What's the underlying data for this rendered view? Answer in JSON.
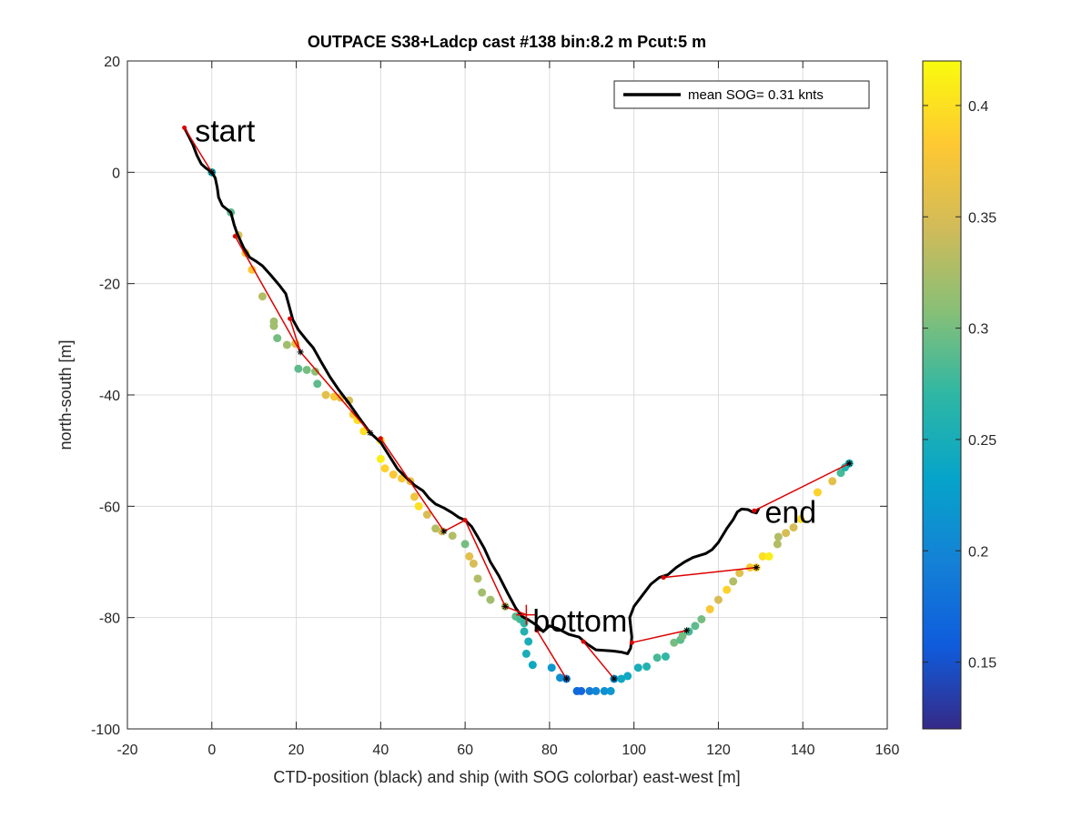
{
  "chart_data": {
    "type": "scatter",
    "title": "OUTPACE S38+Ladcp cast #138 bin:8.2 m  Pcut:5 m",
    "xlabel": "CTD-position (black) and ship (with SOG colorbar) east-west [m]",
    "ylabel": "north-south [m]",
    "xlim": [
      -20,
      160
    ],
    "ylim": [
      -100,
      20
    ],
    "xticks": [
      -20,
      0,
      20,
      40,
      60,
      80,
      100,
      120,
      140,
      160
    ],
    "yticks": [
      -100,
      -80,
      -60,
      -40,
      -20,
      0,
      20
    ],
    "grid": true,
    "legend": {
      "position": "top-right",
      "label": "mean SOG=  0.31 knts"
    },
    "annotations": [
      {
        "text": "start",
        "x": -4,
        "y": 5.5
      },
      {
        "text": "bottom",
        "x": 76,
        "y": -82.5
      },
      {
        "text": "end",
        "x": 131,
        "y": -63
      }
    ],
    "colorbar": {
      "min": 0.12,
      "max": 0.42,
      "ticks": [
        "0.15",
        "0.2",
        "0.25",
        "0.3",
        "0.35",
        "0.4"
      ]
    },
    "colors": {
      "ctd_track": "#000000",
      "connector": "#dd0000",
      "grid": "#dcdcdc"
    },
    "ctd_track": [
      [
        -6.5,
        8
      ],
      [
        -5.5,
        6.5
      ],
      [
        -4.5,
        5
      ],
      [
        -3.5,
        3
      ],
      [
        -2.5,
        1.5
      ],
      [
        -1.5,
        0.8
      ],
      [
        0,
        0
      ],
      [
        0.8,
        -1
      ],
      [
        1.3,
        -2.8
      ],
      [
        1.6,
        -4.5
      ],
      [
        2.5,
        -6
      ],
      [
        4.5,
        -7.2
      ],
      [
        5.3,
        -9.5
      ],
      [
        6,
        -11
      ],
      [
        7.5,
        -13.5
      ],
      [
        9,
        -15.3
      ],
      [
        10.5,
        -16
      ],
      [
        12,
        -16.8
      ],
      [
        14,
        -18.5
      ],
      [
        16,
        -20.3
      ],
      [
        17.5,
        -21.8
      ],
      [
        18.3,
        -24
      ],
      [
        19.2,
        -26.5
      ],
      [
        20.5,
        -28.3
      ],
      [
        22.5,
        -30.2
      ],
      [
        24,
        -31.5
      ],
      [
        26,
        -34.2
      ],
      [
        28,
        -36.8
      ],
      [
        30,
        -39
      ],
      [
        32.5,
        -41.5
      ],
      [
        35,
        -44.2
      ],
      [
        37.5,
        -46.8
      ],
      [
        40,
        -48.5
      ],
      [
        42.5,
        -51.5
      ],
      [
        44,
        -53.3
      ],
      [
        46,
        -54.8
      ],
      [
        48,
        -56.2
      ],
      [
        50,
        -57.2
      ],
      [
        51.5,
        -58.6
      ],
      [
        53,
        -59.6
      ],
      [
        55,
        -60.3
      ],
      [
        57,
        -61.2
      ],
      [
        58.5,
        -62
      ],
      [
        60,
        -62.5
      ],
      [
        61.5,
        -63.6
      ],
      [
        63,
        -65.5
      ],
      [
        64.5,
        -67.5
      ],
      [
        66,
        -70
      ],
      [
        68,
        -72.5
      ],
      [
        70,
        -75.5
      ],
      [
        72,
        -78.3
      ],
      [
        73.5,
        -79.8
      ],
      [
        75,
        -80.4
      ],
      [
        77,
        -81.4
      ],
      [
        78.5,
        -82.5
      ],
      [
        80,
        -81.5
      ],
      [
        82,
        -82
      ],
      [
        84.5,
        -83
      ],
      [
        87,
        -83.5
      ],
      [
        89,
        -84.8
      ],
      [
        91,
        -85.8
      ],
      [
        93,
        -85.9
      ],
      [
        95,
        -86
      ],
      [
        97,
        -86.2
      ],
      [
        98.5,
        -86.5
      ],
      [
        99.2,
        -85.5
      ],
      [
        99.5,
        -83.5
      ],
      [
        99,
        -80
      ],
      [
        100,
        -78
      ],
      [
        102,
        -76
      ],
      [
        104,
        -74
      ],
      [
        106,
        -72.8
      ],
      [
        108,
        -72.3
      ],
      [
        110,
        -71
      ],
      [
        112,
        -70
      ],
      [
        114,
        -69.2
      ],
      [
        117,
        -68.5
      ],
      [
        118.5,
        -67.8
      ],
      [
        120,
        -66.5
      ],
      [
        122,
        -64
      ],
      [
        123.5,
        -62.4
      ],
      [
        124.5,
        -61
      ],
      [
        125.5,
        -60.5
      ],
      [
        127,
        -60.6
      ],
      [
        128,
        -61
      ],
      [
        129,
        -61.2
      ],
      [
        129.5,
        -60.5
      ]
    ],
    "ship_positions": [
      [
        0,
        0,
        0.25
      ],
      [
        4.5,
        -7.2,
        0.29
      ],
      [
        6.3,
        -11.3,
        0.35
      ],
      [
        8,
        -14.5,
        0.37
      ],
      [
        9.5,
        -17.5,
        0.38
      ],
      [
        12,
        -22.3,
        0.33
      ],
      [
        14.7,
        -26.8,
        0.32
      ],
      [
        14.7,
        -27.6,
        0.32
      ],
      [
        15.5,
        -29.8,
        0.3
      ],
      [
        17.8,
        -31,
        0.32
      ],
      [
        19.8,
        -30.8,
        0.36
      ],
      [
        20.5,
        -35.3,
        0.29
      ],
      [
        22.5,
        -35.5,
        0.3
      ],
      [
        24.5,
        -35.8,
        0.31
      ],
      [
        25,
        -38,
        0.29
      ],
      [
        27,
        -40,
        0.36
      ],
      [
        29,
        -40.3,
        0.38
      ],
      [
        30.5,
        -40.5,
        0.36
      ],
      [
        32.5,
        -41,
        0.35
      ],
      [
        33.5,
        -43.5,
        0.38
      ],
      [
        34.5,
        -44.5,
        0.4
      ],
      [
        36,
        -46.5,
        0.4
      ],
      [
        40,
        -48.2,
        0.4
      ],
      [
        40,
        -51.5,
        0.41
      ],
      [
        41,
        -53.2,
        0.39
      ],
      [
        43,
        -54.3,
        0.38
      ],
      [
        45,
        -55,
        0.38
      ],
      [
        47,
        -55.5,
        0.36
      ],
      [
        48,
        -58.3,
        0.37
      ],
      [
        49,
        -60,
        0.4
      ],
      [
        51,
        -61.5,
        0.35
      ],
      [
        53,
        -64,
        0.33
      ],
      [
        54.5,
        -64.5,
        0.35
      ],
      [
        57,
        -65.3,
        0.33
      ],
      [
        60,
        -66.8,
        0.3
      ],
      [
        61,
        -69,
        0.36
      ],
      [
        62,
        -70.3,
        0.35
      ],
      [
        63,
        -73,
        0.33
      ],
      [
        64,
        -75.5,
        0.32
      ],
      [
        66,
        -76.8,
        0.32
      ],
      [
        69.5,
        -78,
        0.33
      ],
      [
        72,
        -79.8,
        0.29
      ],
      [
        73,
        -80.3,
        0.28
      ],
      [
        74,
        -81,
        0.27
      ],
      [
        74,
        -82.5,
        0.26
      ],
      [
        75,
        -84.3,
        0.25
      ],
      [
        74.5,
        -86.5,
        0.25
      ],
      [
        76,
        -88.5,
        0.24
      ],
      [
        80.5,
        -89,
        0.22
      ],
      [
        82.5,
        -90.8,
        0.21
      ],
      [
        84,
        -91,
        0.19
      ],
      [
        86.5,
        -93.2,
        0.17
      ],
      [
        87.5,
        -93.2,
        0.17
      ],
      [
        89.5,
        -93.2,
        0.19
      ],
      [
        91,
        -93.2,
        0.2
      ],
      [
        93,
        -93.2,
        0.21
      ],
      [
        94.5,
        -93.2,
        0.22
      ],
      [
        95.3,
        -91,
        0.21
      ],
      [
        97,
        -91,
        0.24
      ],
      [
        98.5,
        -90.5,
        0.24
      ],
      [
        101,
        -89,
        0.25
      ],
      [
        103,
        -88.8,
        0.26
      ],
      [
        105.5,
        -87.2,
        0.28
      ],
      [
        107.5,
        -87,
        0.27
      ],
      [
        109.5,
        -84.5,
        0.3
      ],
      [
        111,
        -84,
        0.29
      ],
      [
        111.5,
        -83.3,
        0.3
      ],
      [
        113,
        -82.5,
        0.28
      ],
      [
        114.5,
        -81.5,
        0.29
      ],
      [
        116,
        -80.3,
        0.3
      ],
      [
        118,
        -78.5,
        0.38
      ],
      [
        120,
        -76.8,
        0.35
      ],
      [
        122,
        -75,
        0.39
      ],
      [
        123.5,
        -73.5,
        0.33
      ],
      [
        125,
        -72,
        0.36
      ],
      [
        127.5,
        -71,
        0.38
      ],
      [
        129,
        -71,
        0.39
      ],
      [
        130.5,
        -69,
        0.4
      ],
      [
        132,
        -69,
        0.41
      ],
      [
        134,
        -66.8,
        0.33
      ],
      [
        134.2,
        -65.5,
        0.33
      ],
      [
        136,
        -64.8,
        0.35
      ],
      [
        137.8,
        -63.8,
        0.35
      ],
      [
        139.5,
        -62.3,
        0.4
      ],
      [
        143.5,
        -57.5,
        0.39
      ],
      [
        147,
        -55.5,
        0.36
      ],
      [
        149,
        -54,
        0.28
      ],
      [
        150,
        -53,
        0.26
      ],
      [
        151,
        -52.3,
        0.25
      ]
    ],
    "connector_segments": [
      [
        [
          -6.5,
          8
        ],
        [
          0,
          0
        ]
      ],
      [
        [
          5.5,
          -11.5
        ],
        [
          21,
          -32.3
        ]
      ],
      [
        [
          21,
          -32.3
        ],
        [
          18.5,
          -26.3
        ]
      ],
      [
        [
          21,
          -32.3
        ],
        [
          37.5,
          -46.8
        ]
      ],
      [
        [
          40,
          -47.8
        ],
        [
          55,
          -64.5
        ]
      ],
      [
        [
          55,
          -64.5
        ],
        [
          60,
          -62.5
        ]
      ],
      [
        [
          60,
          -62.5
        ],
        [
          69.5,
          -78
        ]
      ],
      [
        [
          69.5,
          -78
        ],
        [
          74.5,
          -79.5
        ]
      ],
      [
        [
          77,
          -82.3
        ],
        [
          84,
          -91
        ]
      ],
      [
        [
          88,
          -84.3
        ],
        [
          95.3,
          -91
        ]
      ],
      [
        [
          99.5,
          -84.5
        ],
        [
          112.5,
          -82.3
        ]
      ],
      [
        [
          107,
          -72.8
        ],
        [
          129,
          -71
        ]
      ],
      [
        [
          128.5,
          -60.8
        ],
        [
          151,
          -52.3
        ]
      ]
    ],
    "connector_points": [
      [
        -6.5,
        8
      ],
      [
        5.5,
        -11.5
      ],
      [
        18.5,
        -26.3
      ],
      [
        40,
        -47.8
      ],
      [
        60,
        -62.5
      ],
      [
        77,
        -82.3
      ],
      [
        88,
        -84.3
      ],
      [
        99.5,
        -84.5
      ],
      [
        107,
        -72.8
      ],
      [
        128.5,
        -60.8
      ]
    ],
    "marked_ship_points": [
      [
        0,
        0
      ],
      [
        21,
        -32.3
      ],
      [
        37.5,
        -46.8
      ],
      [
        55,
        -64.5
      ],
      [
        69.5,
        -78
      ],
      [
        84,
        -91
      ],
      [
        95.3,
        -91
      ],
      [
        112.5,
        -82.3
      ],
      [
        129,
        -71
      ],
      [
        151,
        -52.3
      ]
    ],
    "cross_marker": [
      74.5,
      -79.5
    ]
  }
}
